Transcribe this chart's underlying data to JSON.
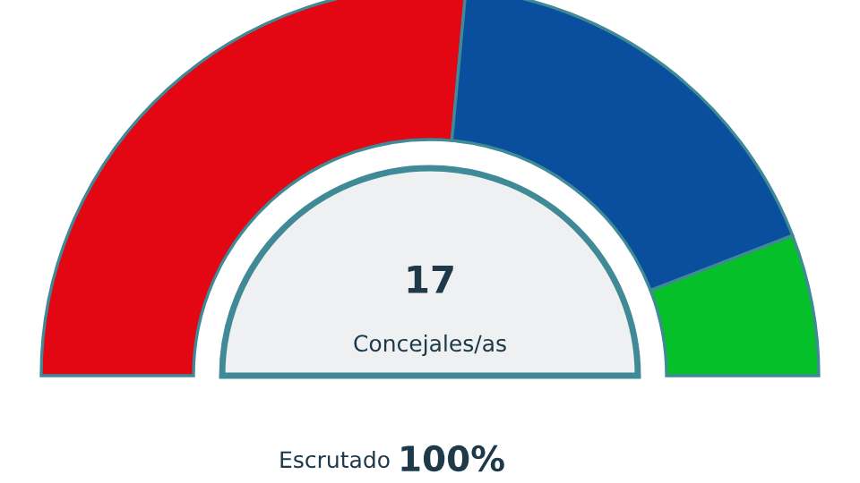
{
  "chart_data": {
    "type": "donut",
    "categories": [
      null,
      null,
      null
    ],
    "values": [
      52.94,
      35.29,
      11.76
    ],
    "colors": [
      "#e30613",
      "#0a4f9e",
      "#06c02a"
    ],
    "annotations": [
      "17",
      "Concejales/as",
      "Escrutado",
      "100%"
    ],
    "legend": false
  }
}
